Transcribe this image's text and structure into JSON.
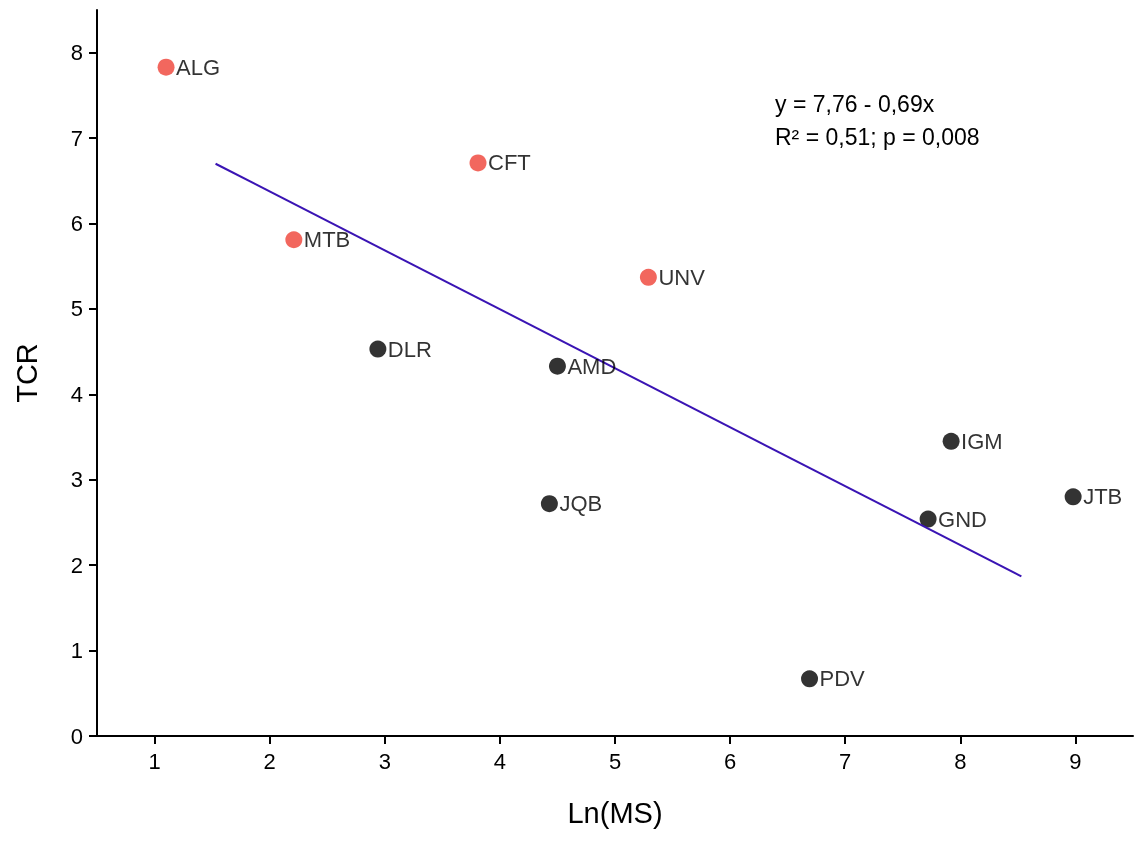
{
  "chart_data": {
    "type": "scatter",
    "xlabel": "Ln(MS)",
    "ylabel": "TCR",
    "xlim": [
      0.5,
      9.5
    ],
    "xticks": [
      1,
      2,
      3,
      4,
      5,
      6,
      7,
      8,
      9
    ],
    "ylim": [
      0,
      8.5
    ],
    "yticks": [
      0,
      1,
      2,
      3,
      4,
      5,
      6,
      7,
      8
    ],
    "grid": false,
    "marker": "circle",
    "series": [
      {
        "color": "#ef4136",
        "x": [
          1.1,
          3.81,
          2.21,
          5.29
        ],
        "values": [
          7.83,
          6.71,
          5.81,
          5.37
        ]
      },
      {
        "color": "#000000",
        "x": [
          2.94,
          4.5,
          4.43,
          6.69,
          7.92,
          7.72,
          8.98
        ],
        "values": [
          4.53,
          4.33,
          2.72,
          0.67,
          3.45,
          2.54,
          2.8
        ]
      },
      {
        "type": "line",
        "color": "#3a14b4",
        "x": [
          1.53,
          8.53
        ],
        "values": [
          6.7,
          1.87
        ],
        "marker": "none",
        "line_style": "solid"
      }
    ],
    "annotations": [
      {
        "text": "ALG",
        "x": 1.1,
        "y": 7.83
      },
      {
        "text": "CFT",
        "x": 3.81,
        "y": 6.71
      },
      {
        "text": "MTB",
        "x": 2.21,
        "y": 5.81
      },
      {
        "text": "UNV",
        "x": 5.29,
        "y": 5.37
      },
      {
        "text": "DLR",
        "x": 2.94,
        "y": 4.53
      },
      {
        "text": "AMD",
        "x": 4.5,
        "y": 4.33
      },
      {
        "text": "JQB",
        "x": 4.43,
        "y": 2.72
      },
      {
        "text": "PDV",
        "x": 6.69,
        "y": 0.67
      },
      {
        "text": "IGM",
        "x": 7.92,
        "y": 3.45
      },
      {
        "text": "GND",
        "x": 7.72,
        "y": 2.54
      },
      {
        "text": "JTB",
        "x": 8.98,
        "y": 2.8
      },
      "y = 7,76 - 0,69x",
      "R² = 0,51; p = 0,008"
    ]
  }
}
